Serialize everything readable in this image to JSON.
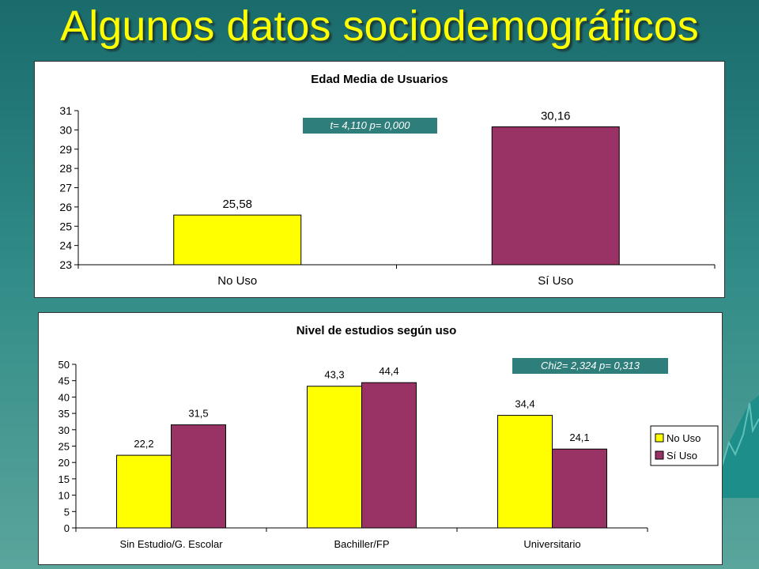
{
  "slide": {
    "title": "Algunos datos sociodemográficos"
  },
  "chart_data": [
    {
      "type": "bar",
      "title": "Edad Media de Usuarios",
      "categories": [
        "No Uso",
        "Sí Uso"
      ],
      "series": [
        {
          "values": [
            25.58,
            30.16
          ]
        }
      ],
      "data_labels": [
        "25,58",
        "30,16"
      ],
      "bar_colors": [
        "#ffff00",
        "#993366"
      ],
      "ylim": [
        23,
        31
      ],
      "yticks": [
        "23",
        "24",
        "25",
        "26",
        "27",
        "28",
        "29",
        "30",
        "31"
      ],
      "annotation": "t= 4,110 p= 0,000",
      "grid": false
    },
    {
      "type": "bar",
      "title": "Nivel de estudios según uso",
      "categories": [
        "Sin Estudio/G. Escolar",
        "Bachiller/FP",
        "Universitario"
      ],
      "series": [
        {
          "name": "No Uso",
          "values": [
            22.2,
            43.3,
            34.4
          ],
          "labels": [
            "22,2",
            "43,3",
            "34,4"
          ],
          "color": "#ffff00"
        },
        {
          "name": "Sí Uso",
          "values": [
            31.5,
            44.4,
            24.1
          ],
          "labels": [
            "31,5",
            "44,4",
            "24,1"
          ],
          "color": "#993366"
        }
      ],
      "ylim": [
        0,
        50
      ],
      "yticks": [
        "0",
        "5",
        "10",
        "15",
        "20",
        "25",
        "30",
        "35",
        "40",
        "45",
        "50"
      ],
      "annotation": "Chi2= 2,324 p= 0,313",
      "legend_position": "right",
      "grid": false
    }
  ]
}
